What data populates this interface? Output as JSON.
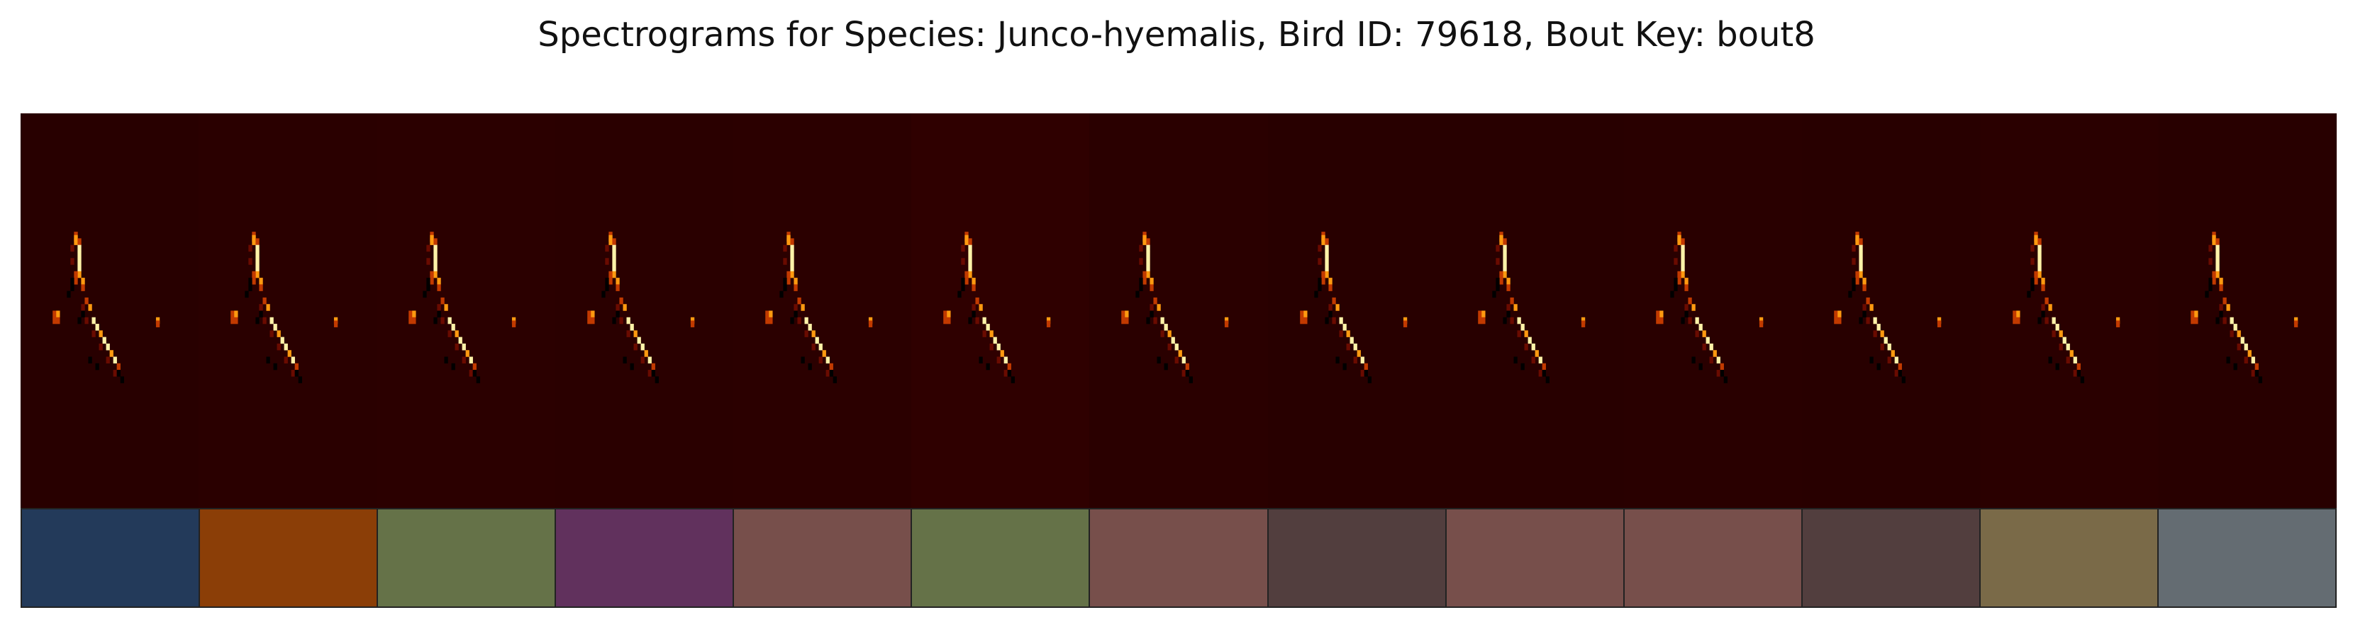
{
  "title": "Spectrograms for Species: Junco-hyemalis, Bird ID: 79618, Bout Key: bout8",
  "spectrogram_palette": {
    "background": "#280000",
    "background_alt": "#300000",
    "dim": "#6a0b00",
    "mid": "#c23a00",
    "bright": "#ff9a10",
    "peak": "#fff3a8",
    "shadow": "#000000"
  },
  "panels": [
    {
      "bg": "#280000",
      "label_color": "#233a5a"
    },
    {
      "bg": "#2a0000",
      "label_color": "#8b3e07"
    },
    {
      "bg": "#2b0000",
      "label_color": "#657248"
    },
    {
      "bg": "#2a0000",
      "label_color": "#61315d"
    },
    {
      "bg": "#2b0000",
      "label_color": "#774f4b"
    },
    {
      "bg": "#2f0000",
      "label_color": "#657248"
    },
    {
      "bg": "#2a0000",
      "label_color": "#774f4b"
    },
    {
      "bg": "#280000",
      "label_color": "#523e3e"
    },
    {
      "bg": "#280000",
      "label_color": "#774f4b"
    },
    {
      "bg": "#290000",
      "label_color": "#774f4b"
    },
    {
      "bg": "#280000",
      "label_color": "#523e3e"
    },
    {
      "bg": "#2a0000",
      "label_color": "#7a6a48"
    },
    {
      "bg": "#280000",
      "label_color": "#646c72"
    }
  ]
}
